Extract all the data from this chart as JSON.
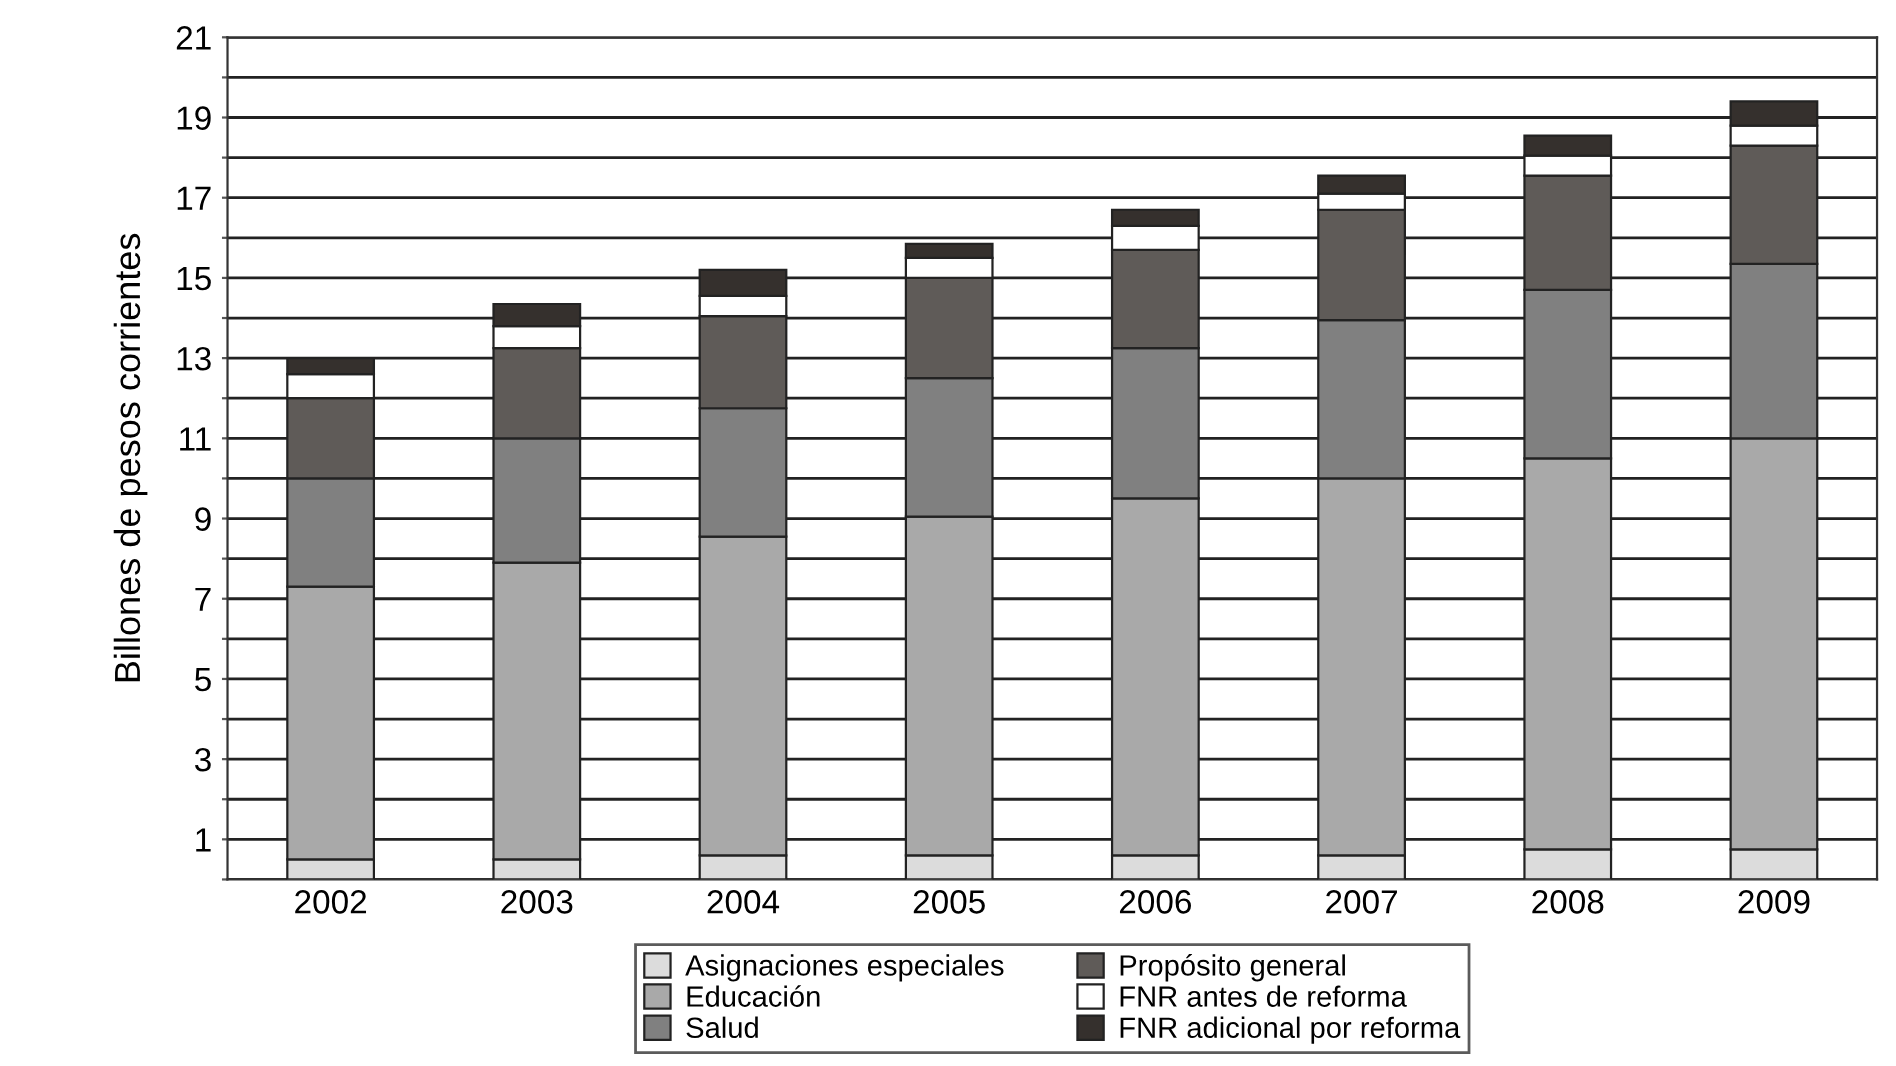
{
  "chart_data": {
    "type": "bar",
    "stacked": true,
    "ylabel": "Billones de pesos corrientes",
    "categories": [
      "2002",
      "2003",
      "2004",
      "2005",
      "2006",
      "2007",
      "2008",
      "2009"
    ],
    "series": [
      {
        "name": "Asignaciones especiales",
        "color": "#dcdcdc",
        "values": [
          0.5,
          0.5,
          0.6,
          0.6,
          0.6,
          0.6,
          0.75,
          0.75
        ]
      },
      {
        "name": "Educación",
        "color": "#a9a9a9",
        "values": [
          6.8,
          7.4,
          7.95,
          8.45,
          8.9,
          9.4,
          9.75,
          10.25
        ]
      },
      {
        "name": "Salud",
        "color": "#808080",
        "values": [
          2.7,
          3.1,
          3.2,
          3.45,
          3.75,
          3.95,
          4.2,
          4.35
        ]
      },
      {
        "name": "Propósito general",
        "color": "#5f5b58",
        "values": [
          2.0,
          2.25,
          2.3,
          2.5,
          2.45,
          2.75,
          2.85,
          2.95
        ]
      },
      {
        "name": "FNR antes de reforma",
        "color": "#ffffff",
        "values": [
          0.6,
          0.55,
          0.5,
          0.5,
          0.6,
          0.4,
          0.5,
          0.5
        ]
      },
      {
        "name": "FNR adicional por reforma",
        "color": "#35302d",
        "values": [
          0.4,
          0.55,
          0.65,
          0.35,
          0.4,
          0.45,
          0.5,
          0.6
        ]
      }
    ],
    "ylim": [
      0,
      21
    ],
    "yticks": [
      {
        "value": 0,
        "label": null
      },
      1,
      {
        "value": 2,
        "label": null
      },
      3,
      {
        "value": 4,
        "label": null
      },
      5,
      {
        "value": 6,
        "label": null
      },
      7,
      {
        "value": 8,
        "label": null
      },
      9,
      {
        "value": 10,
        "label": null
      },
      11,
      {
        "value": 12,
        "label": null
      },
      13,
      {
        "value": 14,
        "label": null
      },
      15,
      {
        "value": 16,
        "label": null
      },
      17,
      {
        "value": 18,
        "label": null
      },
      19,
      {
        "value": 20,
        "label": null
      },
      21
    ],
    "grid": "y",
    "legend": "bottom"
  }
}
